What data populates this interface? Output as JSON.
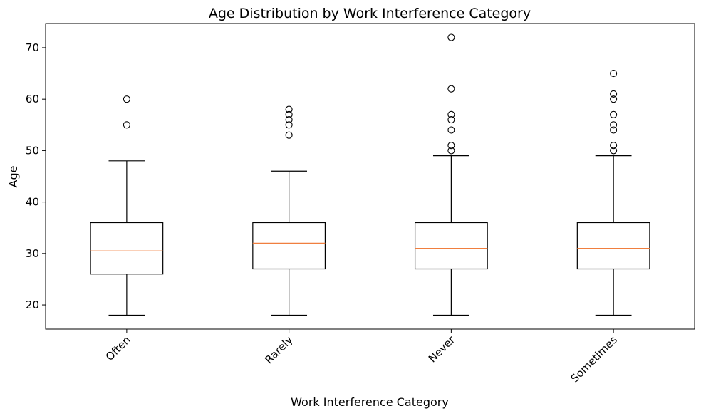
{
  "chart_data": {
    "type": "box",
    "title": "Age Distribution by Work Interference Category",
    "xlabel": "Work Interference Category",
    "ylabel": "Age",
    "ylim": [
      15.3,
      74.7
    ],
    "yticks": [
      20,
      30,
      40,
      50,
      60,
      70
    ],
    "grid": false,
    "colors": {
      "box": "#000000",
      "median": "#f07f3f",
      "flier": "#000000"
    },
    "categories": [
      "Often",
      "Rarely",
      "Never",
      "Sometimes"
    ],
    "boxes": [
      {
        "category": "Often",
        "whisker_low": 18,
        "q1": 26,
        "median": 30.5,
        "q3": 36,
        "whisker_high": 48,
        "outliers": [
          55,
          60
        ]
      },
      {
        "category": "Rarely",
        "whisker_low": 18,
        "q1": 27,
        "median": 32,
        "q3": 36,
        "whisker_high": 46,
        "outliers": [
          53,
          55,
          56,
          57,
          58
        ]
      },
      {
        "category": "Never",
        "whisker_low": 18,
        "q1": 27,
        "median": 31,
        "q3": 36,
        "whisker_high": 49,
        "outliers": [
          50,
          51,
          54,
          56,
          57,
          62,
          72
        ]
      },
      {
        "category": "Sometimes",
        "whisker_low": 18,
        "q1": 27,
        "median": 31,
        "q3": 36,
        "whisker_high": 49,
        "outliers": [
          50,
          51,
          54,
          55,
          57,
          60,
          61,
          65
        ]
      }
    ]
  }
}
